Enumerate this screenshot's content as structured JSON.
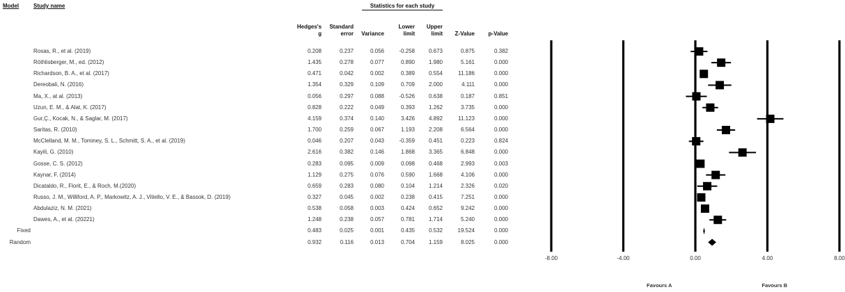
{
  "headers": {
    "model": "Model",
    "study_name": "Study name",
    "stats_group": "Statistics for each study",
    "columns": [
      [
        "Hedges's",
        "g"
      ],
      [
        "Standard",
        "error"
      ],
      [
        "",
        "Variance"
      ],
      [
        "Lower",
        "limit"
      ],
      [
        "Upper",
        "limit"
      ],
      [
        "",
        "Z-Value"
      ],
      [
        "",
        "p-Value"
      ]
    ]
  },
  "rows": [
    {
      "model": "",
      "name": "Rosas, R., et al. (2019)",
      "g": "0.208",
      "se": "0.237",
      "var": "0.056",
      "ll": "-0.258",
      "ul": "0.673",
      "z": "0.875",
      "p": "0.382"
    },
    {
      "model": "",
      "name": "Röthlisberger, M., ed. (2012)",
      "g": "1.435",
      "se": "0.278",
      "var": "0.077",
      "ll": "0.890",
      "ul": "1.980",
      "z": "5.161",
      "p": "0.000"
    },
    {
      "model": "",
      "name": "Richardson, B. A., et al. (2017)",
      "g": "0.471",
      "se": "0.042",
      "var": "0.002",
      "ll": "0.389",
      "ul": "0.554",
      "z": "11.186",
      "p": "0.000"
    },
    {
      "model": "",
      "name": "Dereobali, N. (2016)",
      "g": "1.354",
      "se": "0.329",
      "var": "0.109",
      "ll": "0.709",
      "ul": "2.000",
      "z": "4.111",
      "p": "0.000"
    },
    {
      "model": "",
      "name": "Ma, X., at al. (2013)",
      "g": "0.056",
      "se": "0.297",
      "var": "0.088",
      "ll": "-0.526",
      "ul": "0.638",
      "z": "0.187",
      "p": "0.851"
    },
    {
      "model": "",
      "name": "Uzun, E. M., & Alat, K. (2017)",
      "g": "0.828",
      "se": "0.222",
      "var": "0.049",
      "ll": "0.393",
      "ul": "1.262",
      "z": "3.735",
      "p": "0.000"
    },
    {
      "model": "",
      "name": "Gur,Ç., Kocak, N., & Saglar, M. (2017)",
      "g": "4.159",
      "se": "0.374",
      "var": "0.140",
      "ll": "3.426",
      "ul": "4.892",
      "z": "11.123",
      "p": "0.000"
    },
    {
      "model": "",
      "name": "Saritas, R. (2010)",
      "g": "1.700",
      "se": "0.259",
      "var": "0.067",
      "ll": "1.193",
      "ul": "2.208",
      "z": "6.564",
      "p": "0.000"
    },
    {
      "model": "",
      "name": "McClelland, M. M., Tominey, S. L., Schmitt, S. A., et al. (2019)",
      "g": "0.046",
      "se": "0.207",
      "var": "0.043",
      "ll": "-0.359",
      "ul": "0.451",
      "z": "0.223",
      "p": "0.824"
    },
    {
      "model": "",
      "name": "Kayili, G. (2010)",
      "g": "2.616",
      "se": "0.382",
      "var": "0.146",
      "ll": "1.868",
      "ul": "3.365",
      "z": "6.848",
      "p": "0.000"
    },
    {
      "model": "",
      "name": "Gosse, C. S. (2012)",
      "g": "0.283",
      "se": "0.095",
      "var": "0.009",
      "ll": "0.098",
      "ul": "0.468",
      "z": "2.993",
      "p": "0.003"
    },
    {
      "model": "",
      "name": "Kaynar, F. (2014)",
      "g": "1.129",
      "se": "0.275",
      "var": "0.076",
      "ll": "0.590",
      "ul": "1.668",
      "z": "4.106",
      "p": "0.000"
    },
    {
      "model": "",
      "name": "Dicataldo, R., Florit, E., & Roch, M.(2020)",
      "g": "0.659",
      "se": "0.283",
      "var": "0.080",
      "ll": "0.104",
      "ul": "1.214",
      "z": "2.326",
      "p": "0.020"
    },
    {
      "model": "",
      "name": "Russo, J. M., Williford, A. P., Markowitz, A. J., Vitiello, V. E., & Bassok, D. (2019)",
      "g": "0.327",
      "se": "0.045",
      "var": "0.002",
      "ll": "0.238",
      "ul": "0.415",
      "z": "7.251",
      "p": "0.000"
    },
    {
      "model": "",
      "name": "Abdulaziz, N. M. (2021)",
      "g": "0.538",
      "se": "0.058",
      "var": "0.003",
      "ll": "0.424",
      "ul": "0.652",
      "z": "9.242",
      "p": "0.000"
    },
    {
      "model": "",
      "name": "Dawes, A., et al. (20221)",
      "g": "1.248",
      "se": "0.238",
      "var": "0.057",
      "ll": "0.781",
      "ul": "1.714",
      "z": "5.240",
      "p": "0.000"
    },
    {
      "model": "Fixed",
      "name": "",
      "g": "0.483",
      "se": "0.025",
      "var": "0.001",
      "ll": "0.435",
      "ul": "0.532",
      "z": "19.524",
      "p": "0.000"
    },
    {
      "model": "Random",
      "name": "",
      "g": "0.932",
      "se": "0.116",
      "var": "0.013",
      "ll": "0.704",
      "ul": "1.159",
      "z": "8.025",
      "p": "0.000"
    }
  ],
  "chart_data": {
    "type": "forest",
    "xlim": [
      -8,
      8
    ],
    "ticks": [
      -8,
      -4,
      0,
      4,
      8
    ],
    "tick_labels": [
      "-8.00",
      "-4.00",
      "0.00",
      "4.00",
      "8.00"
    ],
    "grid": "vertical lines at ticks",
    "favours_left": "Favours A",
    "favours_right": "Favours B",
    "studies": [
      {
        "g": 0.208,
        "lower": -0.258,
        "upper": 0.673
      },
      {
        "g": 1.435,
        "lower": 0.89,
        "upper": 1.98
      },
      {
        "g": 0.471,
        "lower": 0.389,
        "upper": 0.554
      },
      {
        "g": 1.354,
        "lower": 0.709,
        "upper": 2.0
      },
      {
        "g": 0.056,
        "lower": -0.526,
        "upper": 0.638
      },
      {
        "g": 0.828,
        "lower": 0.393,
        "upper": 1.262
      },
      {
        "g": 4.159,
        "lower": 3.426,
        "upper": 4.892
      },
      {
        "g": 1.7,
        "lower": 1.193,
        "upper": 2.208
      },
      {
        "g": 0.046,
        "lower": -0.359,
        "upper": 0.451
      },
      {
        "g": 2.616,
        "lower": 1.868,
        "upper": 3.365
      },
      {
        "g": 0.283,
        "lower": 0.098,
        "upper": 0.468
      },
      {
        "g": 1.129,
        "lower": 0.59,
        "upper": 1.668
      },
      {
        "g": 0.659,
        "lower": 0.104,
        "upper": 1.214
      },
      {
        "g": 0.327,
        "lower": 0.238,
        "upper": 0.415
      },
      {
        "g": 0.538,
        "lower": 0.424,
        "upper": 0.652
      },
      {
        "g": 1.248,
        "lower": 0.781,
        "upper": 1.714
      }
    ],
    "summary": [
      {
        "model": "Fixed",
        "g": 0.483,
        "lower": 0.435,
        "upper": 0.532
      },
      {
        "model": "Random",
        "g": 0.932,
        "lower": 0.704,
        "upper": 1.159
      }
    ]
  }
}
